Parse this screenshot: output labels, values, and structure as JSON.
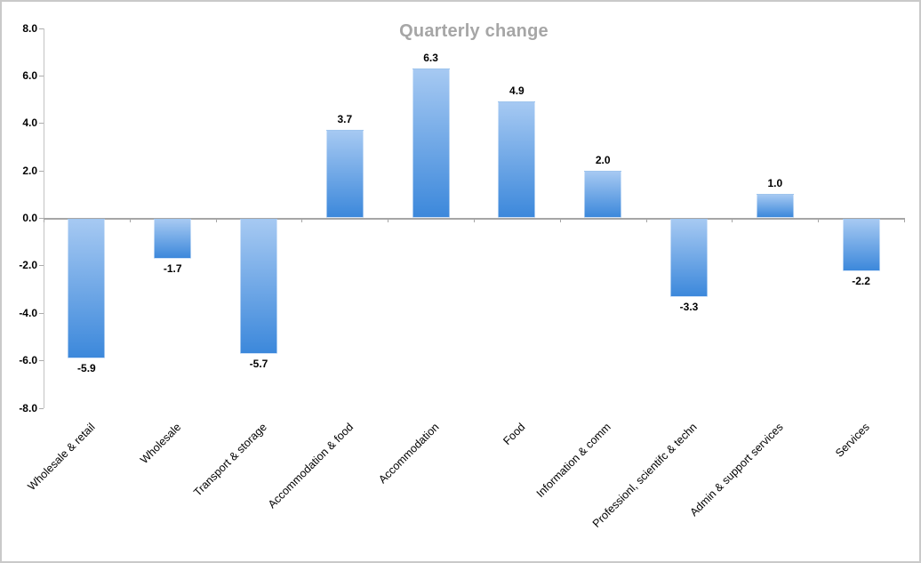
{
  "chart_data": {
    "type": "bar",
    "title": "Quarterly change",
    "categories": [
      "Wholesale & retail",
      "Wholesale",
      "Transport & storage",
      "Accommodation & food",
      "Accommodation",
      "Food",
      "Information & comm",
      "Professionl, scientifc & techn",
      "Admin & support services",
      "Services"
    ],
    "values": [
      -5.9,
      -1.7,
      -5.7,
      3.7,
      6.3,
      4.9,
      2.0,
      -3.3,
      1.0,
      -2.2
    ],
    "data_labels": [
      "-5.9",
      "-1.7",
      "-5.7",
      "3.7",
      "6.3",
      "4.9",
      "2.0",
      "-3.3",
      "1.0",
      "-2.2"
    ],
    "y_ticks": [
      "8.0",
      "6.0",
      "4.0",
      "2.0",
      "0.0",
      "-2.0",
      "-4.0",
      "-6.0",
      "-8.0"
    ],
    "ylim": [
      -8.0,
      8.0
    ],
    "xlabel": "",
    "ylabel": "",
    "legend": "none",
    "grid": false,
    "colors": {
      "title": "#a6a6a6",
      "bar_gradient_top": "#a6c9f2",
      "bar_gradient_bottom": "#3c88db",
      "y_axis_line": "#c3c3c3",
      "axis_tick": "#ababab",
      "zero_line": "#a6a6a6",
      "label_text": "#000000",
      "frame_border": "#c9c9c9"
    }
  }
}
